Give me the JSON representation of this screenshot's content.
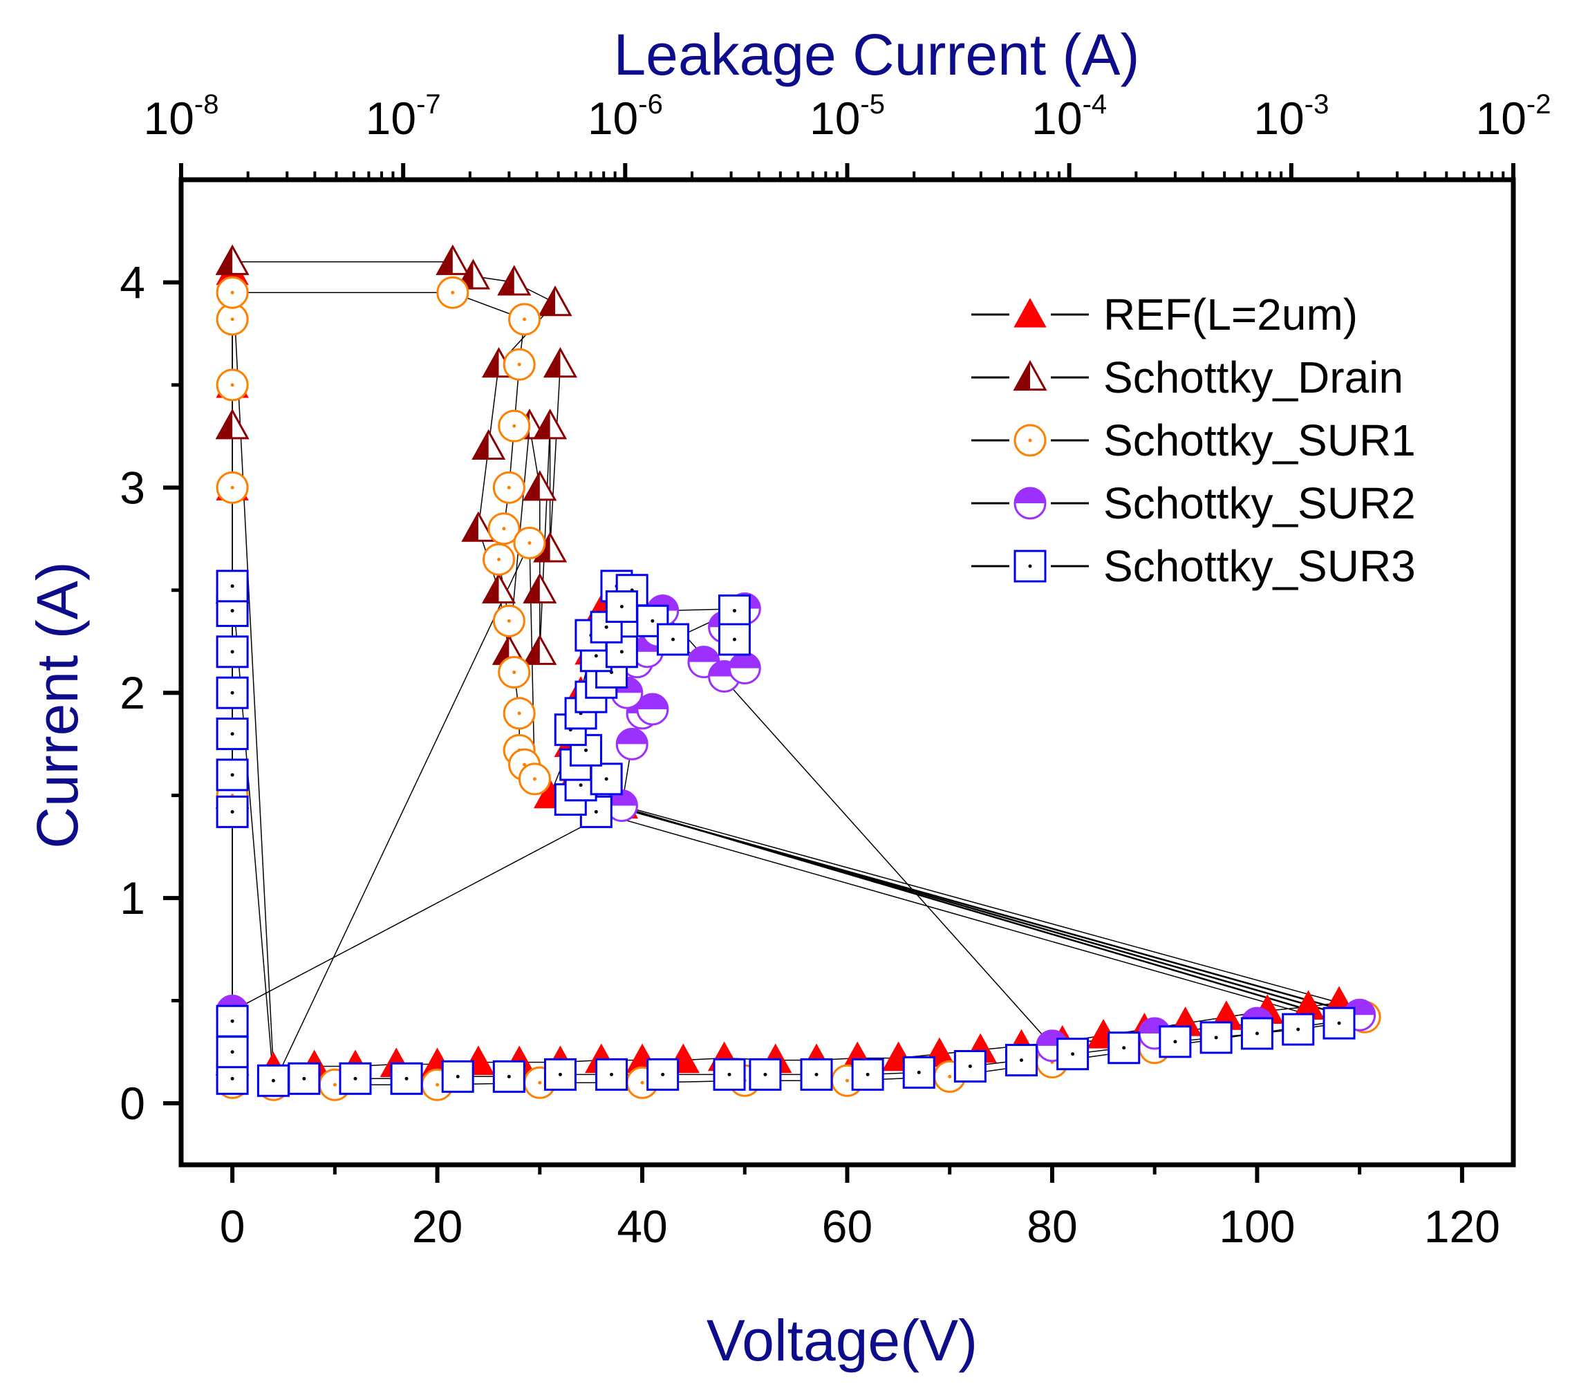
{
  "chart_data": {
    "type": "line",
    "title": "",
    "xlabel": "Voltage(V)",
    "ylabel": "Current (A)",
    "top_xlabel": "Leakage Current (A)",
    "xlim": [
      -5,
      125
    ],
    "ylim": [
      -0.3,
      4.5
    ],
    "xticks": [
      0,
      20,
      40,
      60,
      80,
      100,
      120
    ],
    "yticks": [
      0,
      1,
      2,
      3,
      4
    ],
    "top_xlim_log10": [
      -8,
      -2
    ],
    "top_xticks": [
      {
        "base": "10",
        "exp": "-8",
        "log": -8
      },
      {
        "base": "10",
        "exp": "-7",
        "log": -7
      },
      {
        "base": "10",
        "exp": "-6",
        "log": -6
      },
      {
        "base": "10",
        "exp": "-5",
        "log": -5
      },
      {
        "base": "10",
        "exp": "-4",
        "log": -4
      },
      {
        "base": "10",
        "exp": "-3",
        "log": -3
      },
      {
        "base": "10",
        "exp": "-2",
        "log": -2
      }
    ],
    "legend_position": "top-right",
    "series": [
      {
        "name": "REF(L=2um)",
        "marker": "triangle-filled",
        "color": "#ff0000",
        "stroke": "#ff0000",
        "points": [
          [
            0,
            0.15
          ],
          [
            0,
            0.3
          ],
          [
            0,
            0.45
          ],
          [
            0,
            1.5
          ],
          [
            0,
            2.0
          ],
          [
            0,
            2.5
          ],
          [
            0,
            3.0
          ],
          [
            0,
            3.5
          ],
          [
            0,
            4.05
          ],
          [
            4,
            0.17
          ],
          [
            8,
            0.18
          ],
          [
            12,
            0.18
          ],
          [
            16,
            0.19
          ],
          [
            20,
            0.19
          ],
          [
            24,
            0.2
          ],
          [
            28,
            0.2
          ],
          [
            32,
            0.2
          ],
          [
            36,
            0.21
          ],
          [
            40,
            0.21
          ],
          [
            44,
            0.21
          ],
          [
            48,
            0.22
          ],
          [
            53,
            0.21
          ],
          [
            57,
            0.21
          ],
          [
            61,
            0.22
          ],
          [
            65,
            0.22
          ],
          [
            69,
            0.24
          ],
          [
            73,
            0.26
          ],
          [
            77,
            0.28
          ],
          [
            81,
            0.3
          ],
          [
            85,
            0.33
          ],
          [
            89,
            0.36
          ],
          [
            93,
            0.39
          ],
          [
            97,
            0.42
          ],
          [
            101,
            0.45
          ],
          [
            105,
            0.47
          ],
          [
            108,
            0.49
          ],
          [
            38,
            1.45
          ],
          [
            33,
            1.55
          ],
          [
            31,
            1.5
          ],
          [
            33,
            1.75
          ],
          [
            34,
            2.0
          ],
          [
            35,
            2.2
          ],
          [
            36,
            2.4
          ]
        ]
      },
      {
        "name": "Schottky_Drain",
        "marker": "triangle-half",
        "color": "#8b0000",
        "stroke": "#8b0000",
        "points": [
          [
            0,
            0.2
          ],
          [
            0,
            1.5
          ],
          [
            0,
            2.5
          ],
          [
            0,
            3.3
          ],
          [
            0,
            4.1
          ],
          [
            21.5,
            4.1
          ],
          [
            23.5,
            4.03
          ],
          [
            27.5,
            4.0
          ],
          [
            31.5,
            3.9
          ],
          [
            26,
            3.6
          ],
          [
            25,
            3.2
          ],
          [
            24,
            2.8
          ],
          [
            26,
            2.5
          ],
          [
            27,
            2.2
          ],
          [
            29,
            3.3
          ],
          [
            30,
            3.0
          ],
          [
            30,
            2.5
          ],
          [
            30,
            2.2
          ],
          [
            31,
            3.3
          ],
          [
            31,
            2.7
          ],
          [
            32,
            3.6
          ]
        ]
      },
      {
        "name": "Schottky_SUR1",
        "marker": "circle-dot",
        "color": "#ff8000",
        "stroke": "#ff8000",
        "points": [
          [
            0,
            0.1
          ],
          [
            0,
            1.5
          ],
          [
            0,
            2.5
          ],
          [
            0,
            3.0
          ],
          [
            0,
            3.5
          ],
          [
            0,
            3.82
          ],
          [
            0,
            3.95
          ],
          [
            21.5,
            3.95
          ],
          [
            28.5,
            3.82
          ],
          [
            28,
            3.6
          ],
          [
            27.5,
            3.3
          ],
          [
            27,
            3.0
          ],
          [
            26.5,
            2.8
          ],
          [
            26,
            2.65
          ],
          [
            27,
            2.35
          ],
          [
            27.5,
            2.1
          ],
          [
            28,
            1.9
          ],
          [
            28,
            1.72
          ],
          [
            28.5,
            1.65
          ],
          [
            29.5,
            1.58
          ],
          [
            29,
            2.73
          ],
          [
            4,
            0.09
          ],
          [
            10,
            0.09
          ],
          [
            20,
            0.09
          ],
          [
            30,
            0.1
          ],
          [
            40,
            0.1
          ],
          [
            50,
            0.11
          ],
          [
            60,
            0.11
          ],
          [
            70,
            0.13
          ],
          [
            80,
            0.2
          ],
          [
            90,
            0.27
          ],
          [
            100,
            0.34
          ],
          [
            110.5,
            0.42
          ]
        ]
      },
      {
        "name": "Schottky_SUR2",
        "marker": "circle-half",
        "color": "#9b30ff",
        "stroke": "#9b30ff",
        "points": [
          [
            0,
            0.15
          ],
          [
            0,
            0.45
          ],
          [
            38,
            1.45
          ],
          [
            39,
            1.75
          ],
          [
            40,
            1.9
          ],
          [
            41,
            1.92
          ],
          [
            38.5,
            2.0
          ],
          [
            39.5,
            2.15
          ],
          [
            40.5,
            2.2
          ],
          [
            41.5,
            2.3
          ],
          [
            46,
            2.15
          ],
          [
            48,
            2.08
          ],
          [
            50,
            2.12
          ],
          [
            48,
            2.32
          ],
          [
            50,
            2.41
          ],
          [
            42,
            2.4
          ],
          [
            80,
            0.28
          ],
          [
            90,
            0.34
          ],
          [
            100,
            0.39
          ],
          [
            110,
            0.43
          ]
        ]
      },
      {
        "name": "Schottky_SUR3",
        "marker": "square-dot",
        "color": "#0000ee",
        "stroke": "#0000ee",
        "points": [
          [
            0,
            0.12
          ],
          [
            0,
            0.25
          ],
          [
            0,
            0.4
          ],
          [
            0,
            1.42
          ],
          [
            0,
            1.6
          ],
          [
            0,
            1.8
          ],
          [
            0,
            2.0
          ],
          [
            0,
            2.2
          ],
          [
            0,
            2.4
          ],
          [
            0,
            2.52
          ],
          [
            4,
            0.11
          ],
          [
            7,
            0.12
          ],
          [
            12,
            0.12
          ],
          [
            17,
            0.12
          ],
          [
            22,
            0.13
          ],
          [
            27,
            0.13
          ],
          [
            32,
            0.14
          ],
          [
            37,
            0.14
          ],
          [
            42,
            0.14
          ],
          [
            48.5,
            0.14
          ],
          [
            52,
            0.14
          ],
          [
            57,
            0.14
          ],
          [
            62,
            0.14
          ],
          [
            67,
            0.15
          ],
          [
            72,
            0.18
          ],
          [
            77,
            0.21
          ],
          [
            82,
            0.24
          ],
          [
            87,
            0.27
          ],
          [
            92,
            0.3
          ],
          [
            96,
            0.32
          ],
          [
            100,
            0.34
          ],
          [
            104,
            0.36
          ],
          [
            108,
            0.39
          ],
          [
            35.5,
            1.42
          ],
          [
            33,
            1.48
          ],
          [
            34,
            1.55
          ],
          [
            36.5,
            1.58
          ],
          [
            33.5,
            1.65
          ],
          [
            34.5,
            1.72
          ],
          [
            33,
            1.82
          ],
          [
            34,
            1.9
          ],
          [
            35,
            1.98
          ],
          [
            36,
            2.05
          ],
          [
            37,
            2.1
          ],
          [
            35.5,
            2.18
          ],
          [
            38,
            2.2
          ],
          [
            35,
            2.28
          ],
          [
            36.5,
            2.32
          ],
          [
            37.5,
            2.52
          ],
          [
            39,
            2.5
          ],
          [
            38,
            2.42
          ],
          [
            41,
            2.35
          ],
          [
            43,
            2.26
          ],
          [
            49,
            2.4
          ],
          [
            49,
            2.26
          ]
        ]
      }
    ],
    "connector_lines": [
      {
        "from": [
          37.5,
          1.45
        ],
        "to": [
          106,
          0.44
        ]
      },
      {
        "from": [
          38,
          1.44
        ],
        "to": [
          107,
          0.45
        ]
      },
      {
        "from": [
          38.5,
          1.43
        ],
        "to": [
          108,
          0.46
        ]
      }
    ]
  }
}
